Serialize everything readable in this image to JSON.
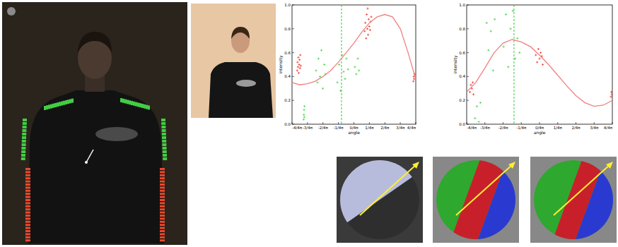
{
  "chart_data": [
    {
      "type": "scatter",
      "xlabel": "angle",
      "ylabel": "intensity",
      "xlim": [
        -3.14159,
        3.14159
      ],
      "ylim": [
        0,
        1
      ],
      "xticks": [
        {
          "value": -3.14159,
          "label": "-4/4π"
        },
        {
          "value": -2.35619,
          "label": "-3/4π"
        },
        {
          "value": -1.5708,
          "label": "-2/4π"
        },
        {
          "value": -0.7854,
          "label": "-1/4π"
        },
        {
          "value": 0,
          "label": "0/4π"
        },
        {
          "value": 0.7854,
          "label": "1/4π"
        },
        {
          "value": 1.5708,
          "label": "2/4π"
        },
        {
          "value": 2.35619,
          "label": "3/4π"
        },
        {
          "value": 3.14159,
          "label": "4/4π"
        }
      ],
      "yticks": [
        {
          "value": 0,
          "label": "0.0"
        },
        {
          "value": 0.2,
          "label": "0.2"
        },
        {
          "value": 0.4,
          "label": "0.4"
        },
        {
          "value": 0.6,
          "label": "0.6"
        },
        {
          "value": 0.8,
          "label": "0.8"
        },
        {
          "value": 1,
          "label": "1.0"
        }
      ],
      "vline": {
        "x": -0.63,
        "color": "#33cc33",
        "line_style": "dashed"
      },
      "series": [
        {
          "type": "scatter",
          "color": "#33cc33",
          "marker": "plus",
          "x": [
            -2.55,
            -2.54,
            -2.53,
            -2.52,
            -2.51,
            -1.92,
            -1.85,
            -1.8,
            -1.72,
            -1.65,
            -1.58,
            -1.5,
            -1.45,
            -0.84,
            -0.75,
            -0.68,
            -0.6,
            -0.52,
            -0.45,
            -0.38,
            -0.3,
            0.05,
            0.12,
            0.2,
            0.26
          ],
          "values": [
            0.04,
            0.08,
            0.12,
            0.06,
            0.15,
            0.45,
            0.35,
            0.55,
            0.4,
            0.62,
            0.3,
            0.5,
            0.42,
            0.35,
            0.5,
            0.28,
            0.58,
            0.44,
            0.38,
            0.55,
            0.46,
            0.48,
            0.42,
            0.55,
            0.45
          ]
        },
        {
          "type": "scatter",
          "color": "#e8241c",
          "marker": "plus",
          "x": [
            -2.88,
            -2.86,
            -2.84,
            -2.82,
            -2.8,
            -2.78,
            -2.76,
            -2.74,
            -2.72,
            -2.7,
            0.55,
            0.58,
            0.62,
            0.65,
            0.68,
            0.7,
            0.72,
            0.75,
            0.78,
            0.82,
            0.85,
            0.88,
            3.02,
            3.04,
            3.06,
            3.08
          ],
          "values": [
            0.45,
            0.52,
            0.48,
            0.56,
            0.43,
            0.5,
            0.54,
            0.47,
            0.58,
            0.49,
            0.78,
            0.85,
            0.72,
            0.92,
            0.8,
            0.97,
            0.75,
            0.88,
            0.82,
            0.79,
            0.86,
            0.9,
            0.36,
            0.4,
            0.38,
            0.42
          ]
        },
        {
          "type": "line",
          "color": "#f08080",
          "line_style": "solid",
          "x": [
            -3.14,
            -2.75,
            -2.36,
            -1.96,
            -1.57,
            -1.18,
            -0.79,
            -0.39,
            0,
            0.39,
            0.79,
            1.18,
            1.57,
            1.96,
            2.36,
            2.75,
            3.14
          ],
          "values": [
            0.35,
            0.33,
            0.34,
            0.36,
            0.4,
            0.45,
            0.52,
            0.6,
            0.68,
            0.77,
            0.85,
            0.9,
            0.92,
            0.9,
            0.8,
            0.6,
            0.38
          ]
        }
      ]
    },
    {
      "type": "scatter",
      "xlabel": "angle",
      "ylabel": "intensity",
      "xlim": [
        -3.14159,
        3.14159
      ],
      "ylim": [
        0,
        1
      ],
      "xticks": [
        {
          "value": -3.14159,
          "label": "-4/4π"
        },
        {
          "value": -2.35619,
          "label": "-3/4π"
        },
        {
          "value": -1.5708,
          "label": "-2/4π"
        },
        {
          "value": -0.7854,
          "label": "-1/4π"
        },
        {
          "value": 0,
          "label": "0/4π"
        },
        {
          "value": 0.7854,
          "label": "1/4π"
        },
        {
          "value": 1.5708,
          "label": "2/4π"
        },
        {
          "value": 2.35619,
          "label": "3/4π"
        },
        {
          "value": 3.14159,
          "label": "4/4π"
        }
      ],
      "yticks": [
        {
          "value": 0,
          "label": "0.0"
        },
        {
          "value": 0.2,
          "label": "0.2"
        },
        {
          "value": 0.4,
          "label": "0.4"
        },
        {
          "value": 0.6,
          "label": "0.6"
        },
        {
          "value": 0.8,
          "label": "0.8"
        },
        {
          "value": 1,
          "label": "1.0"
        }
      ],
      "vline": {
        "x": -1.1,
        "color": "#33cc33",
        "line_style": "dashed"
      },
      "series": [
        {
          "type": "scatter",
          "color": "#33cc33",
          "marker": "plus",
          "x": [
            -2.78,
            -2.7,
            -2.62,
            -2.55,
            -2.28,
            -2.2,
            -2.1,
            -2.0,
            -1.93,
            -1.55,
            -1.45,
            -1.35,
            -1.25,
            -1.15,
            -1.05,
            -0.95,
            -0.86
          ],
          "values": [
            0.05,
            0.15,
            0.02,
            0.18,
            0.85,
            0.62,
            0.78,
            0.45,
            0.88,
            0.65,
            0.92,
            0.48,
            0.8,
            0.95,
            0.55,
            0.72,
            0.6
          ]
        },
        {
          "type": "scatter",
          "color": "#e8241c",
          "marker": "plus",
          "x": [
            -3.0,
            -2.96,
            -2.92,
            -2.88,
            -2.85,
            -0.16,
            -0.1,
            -0.05,
            0,
            0.05,
            0.1,
            0.14,
            3.08,
            3.1,
            3.12
          ],
          "values": [
            0.27,
            0.33,
            0.3,
            0.35,
            0.25,
            0.58,
            0.52,
            0.63,
            0.55,
            0.6,
            0.57,
            0.5,
            0.23,
            0.27,
            0.25
          ]
        },
        {
          "type": "line",
          "color": "#f08080",
          "line_style": "solid",
          "x": [
            -3.14,
            -2.75,
            -2.36,
            -1.96,
            -1.57,
            -1.18,
            -0.79,
            -0.39,
            0,
            0.39,
            0.79,
            1.18,
            1.57,
            1.96,
            2.36,
            2.75,
            3.14
          ],
          "values": [
            0.27,
            0.35,
            0.47,
            0.6,
            0.68,
            0.71,
            0.69,
            0.65,
            0.58,
            0.5,
            0.41,
            0.32,
            0.24,
            0.18,
            0.15,
            0.16,
            0.2
          ]
        }
      ]
    }
  ]
}
